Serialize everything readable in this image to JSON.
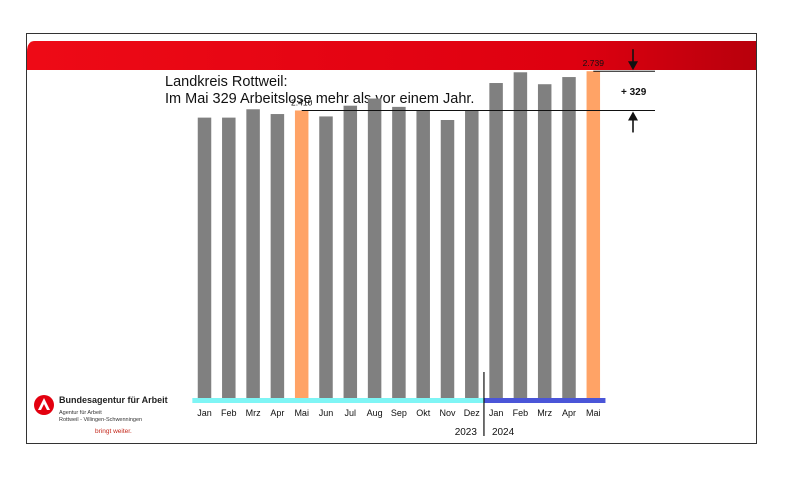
{
  "title": {
    "line1": "Landkreis Rottweil:",
    "line2": "Im Mai 329 Arbeitslose mehr als vor einem Jahr."
  },
  "logo": {
    "name": "Bundesagentur für Arbeit",
    "sub1": "Agentur für Arbeit",
    "sub2": "Rottweil - Villingen-Schwenningen",
    "slogan": "bringt weiter."
  },
  "colors": {
    "bar_default": "#808080",
    "bar_highlight": "#ffa366",
    "band_2023": "#7ff5f5",
    "band_2024": "#4a55d8",
    "banner_red": "#e3000f",
    "logo_red": "#e3000f"
  },
  "chart_data": {
    "type": "bar",
    "categories": [
      "Jan",
      "Feb",
      "Mrz",
      "Apr",
      "Mai",
      "Jun",
      "Jul",
      "Aug",
      "Sep",
      "Okt",
      "Nov",
      "Dez",
      "Jan",
      "Feb",
      "Mrz",
      "Apr",
      "Mai"
    ],
    "values": [
      2350,
      2350,
      2420,
      2380,
      2410,
      2360,
      2450,
      2510,
      2440,
      2410,
      2330,
      2410,
      2640,
      2730,
      2630,
      2690,
      2739
    ],
    "highlight_indices": [
      4,
      16
    ],
    "data_labels": [
      {
        "index": 4,
        "text": "2.410"
      },
      {
        "index": 16,
        "text": "2.739"
      }
    ],
    "difference_label": "+ 329",
    "years": [
      {
        "label": "2023",
        "start": 0,
        "end": 11
      },
      {
        "label": "2024",
        "start": 12,
        "end": 16
      }
    ],
    "ylim": [
      0,
      2900
    ],
    "grid": false,
    "legend": "none"
  }
}
